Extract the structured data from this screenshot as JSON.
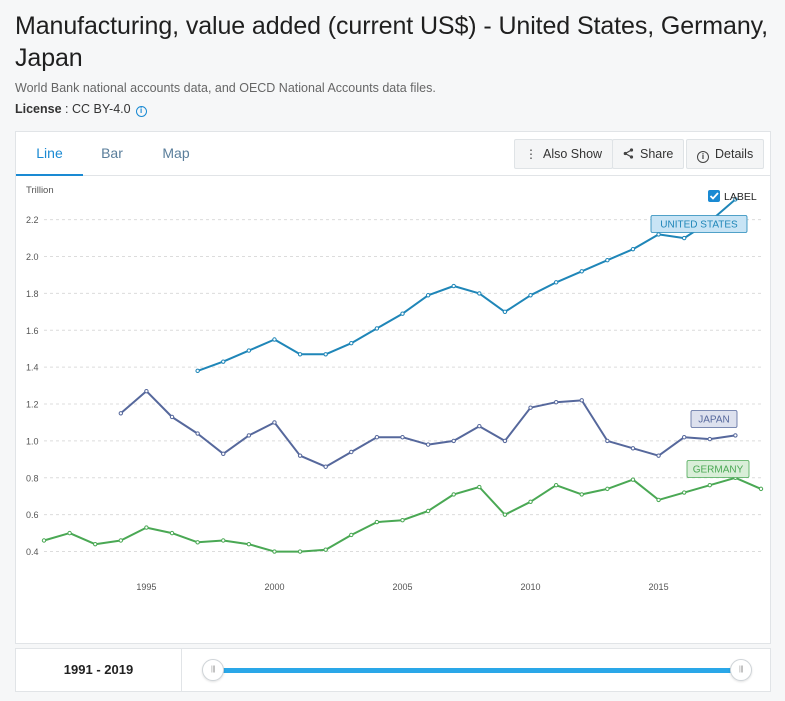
{
  "header": {
    "title": "Manufacturing, value added (current US$) - United States, Germany, Japan",
    "source": "World Bank national accounts data, and OECD National Accounts data files.",
    "license_label": "License",
    "license_value": " : CC BY-4.0"
  },
  "tabs": [
    {
      "label": "Line",
      "active": true
    },
    {
      "label": "Bar",
      "active": false
    },
    {
      "label": "Map",
      "active": false
    }
  ],
  "toolbar": {
    "also_show": "Also Show",
    "share": "Share",
    "details": "Details"
  },
  "label_toggle": {
    "text": "LABEL",
    "checked": true
  },
  "range": {
    "label": "1991 - 2019",
    "start_pct": 0,
    "end_pct": 100
  },
  "colors": {
    "us": "#1f86b8",
    "japan": "#56689c",
    "germany": "#4aa854"
  },
  "chart_data": {
    "type": "line",
    "ylabel": "Trillion",
    "ylim": [
      0.3,
      2.35
    ],
    "yticks": [
      0.4,
      0.6,
      0.8,
      1.0,
      1.2,
      1.4,
      1.6,
      1.8,
      2.0,
      2.2
    ],
    "xlim": [
      1991,
      2019
    ],
    "xticks": [
      1995,
      2000,
      2005,
      2010,
      2015
    ],
    "grid": true,
    "series": [
      {
        "name": "UNITED STATES",
        "x": [
          1997,
          1998,
          1999,
          2000,
          2001,
          2002,
          2003,
          2004,
          2005,
          2006,
          2007,
          2008,
          2009,
          2010,
          2011,
          2012,
          2013,
          2014,
          2015,
          2016,
          2017,
          2018
        ],
        "values": [
          1.38,
          1.43,
          1.49,
          1.55,
          1.47,
          1.47,
          1.53,
          1.61,
          1.69,
          1.79,
          1.84,
          1.8,
          1.7,
          1.79,
          1.86,
          1.92,
          1.98,
          2.04,
          2.12,
          2.1,
          2.19,
          2.31
        ]
      },
      {
        "name": "JAPAN",
        "x": [
          1994,
          1995,
          1996,
          1997,
          1998,
          1999,
          2000,
          2001,
          2002,
          2003,
          2004,
          2005,
          2006,
          2007,
          2008,
          2009,
          2010,
          2011,
          2012,
          2013,
          2014,
          2015,
          2016,
          2017,
          2018
        ],
        "values": [
          1.15,
          1.27,
          1.13,
          1.04,
          0.93,
          1.03,
          1.1,
          0.92,
          0.86,
          0.94,
          1.02,
          1.02,
          0.98,
          1.0,
          1.08,
          1.0,
          1.18,
          1.21,
          1.22,
          1.0,
          0.96,
          0.92,
          1.02,
          1.01,
          1.03
        ]
      },
      {
        "name": "GERMANY",
        "x": [
          1991,
          1992,
          1993,
          1994,
          1995,
          1996,
          1997,
          1998,
          1999,
          2000,
          2001,
          2002,
          2003,
          2004,
          2005,
          2006,
          2007,
          2008,
          2009,
          2010,
          2011,
          2012,
          2013,
          2014,
          2015,
          2016,
          2017,
          2018,
          2019
        ],
        "values": [
          0.46,
          0.5,
          0.44,
          0.46,
          0.53,
          0.5,
          0.45,
          0.46,
          0.44,
          0.4,
          0.4,
          0.41,
          0.49,
          0.56,
          0.57,
          0.62,
          0.71,
          0.75,
          0.6,
          0.67,
          0.76,
          0.71,
          0.74,
          0.79,
          0.68,
          0.72,
          0.76,
          0.8,
          0.74
        ]
      }
    ]
  }
}
